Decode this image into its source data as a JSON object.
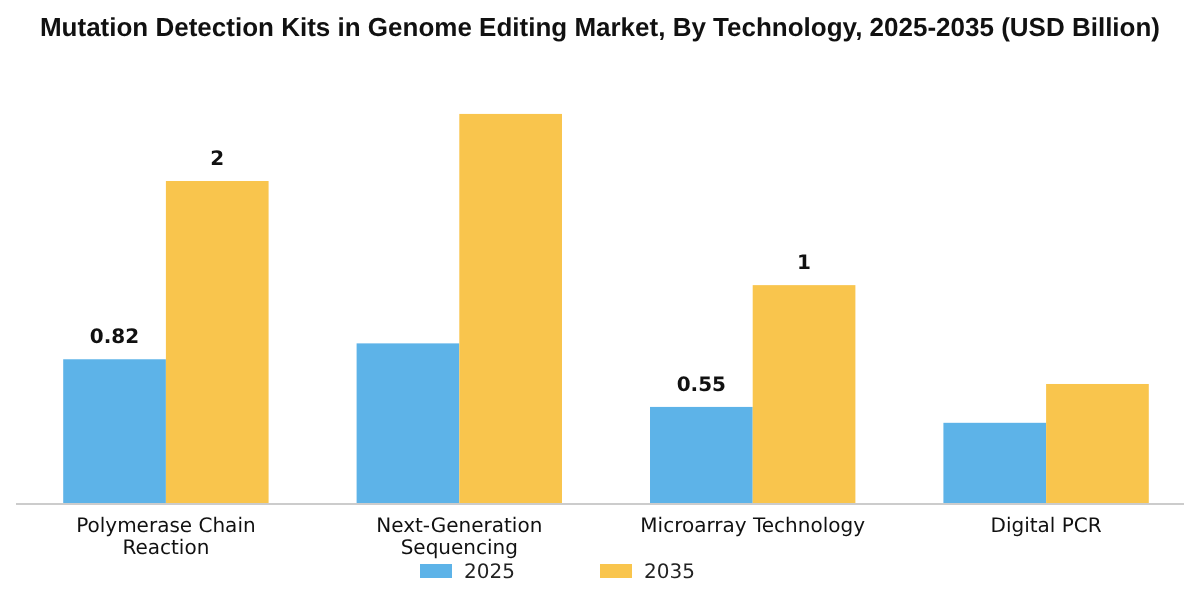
{
  "chart_data": {
    "type": "bar",
    "title": "Mutation Detection Kits in Genome Editing Market, By Technology, 2025-2035 (USD Billion)",
    "categories": [
      "Polymerase Chain Reaction",
      "Next-Generation Sequencing",
      "Microarray Technology",
      "Digital PCR"
    ],
    "series": [
      {
        "name": "2025",
        "color": "#5db3e8",
        "values": [
          0.82,
          0.91,
          0.55,
          0.46
        ],
        "value_labels": [
          "0.82",
          null,
          "0.55",
          null
        ]
      },
      {
        "name": "2035",
        "color": "#f9c54d",
        "values": [
          1.83,
          2.21,
          1.24,
          0.68
        ],
        "value_labels": [
          "2",
          null,
          "1",
          null
        ]
      }
    ],
    "tick_labels": "x",
    "legend": "bottom",
    "grid": false
  }
}
